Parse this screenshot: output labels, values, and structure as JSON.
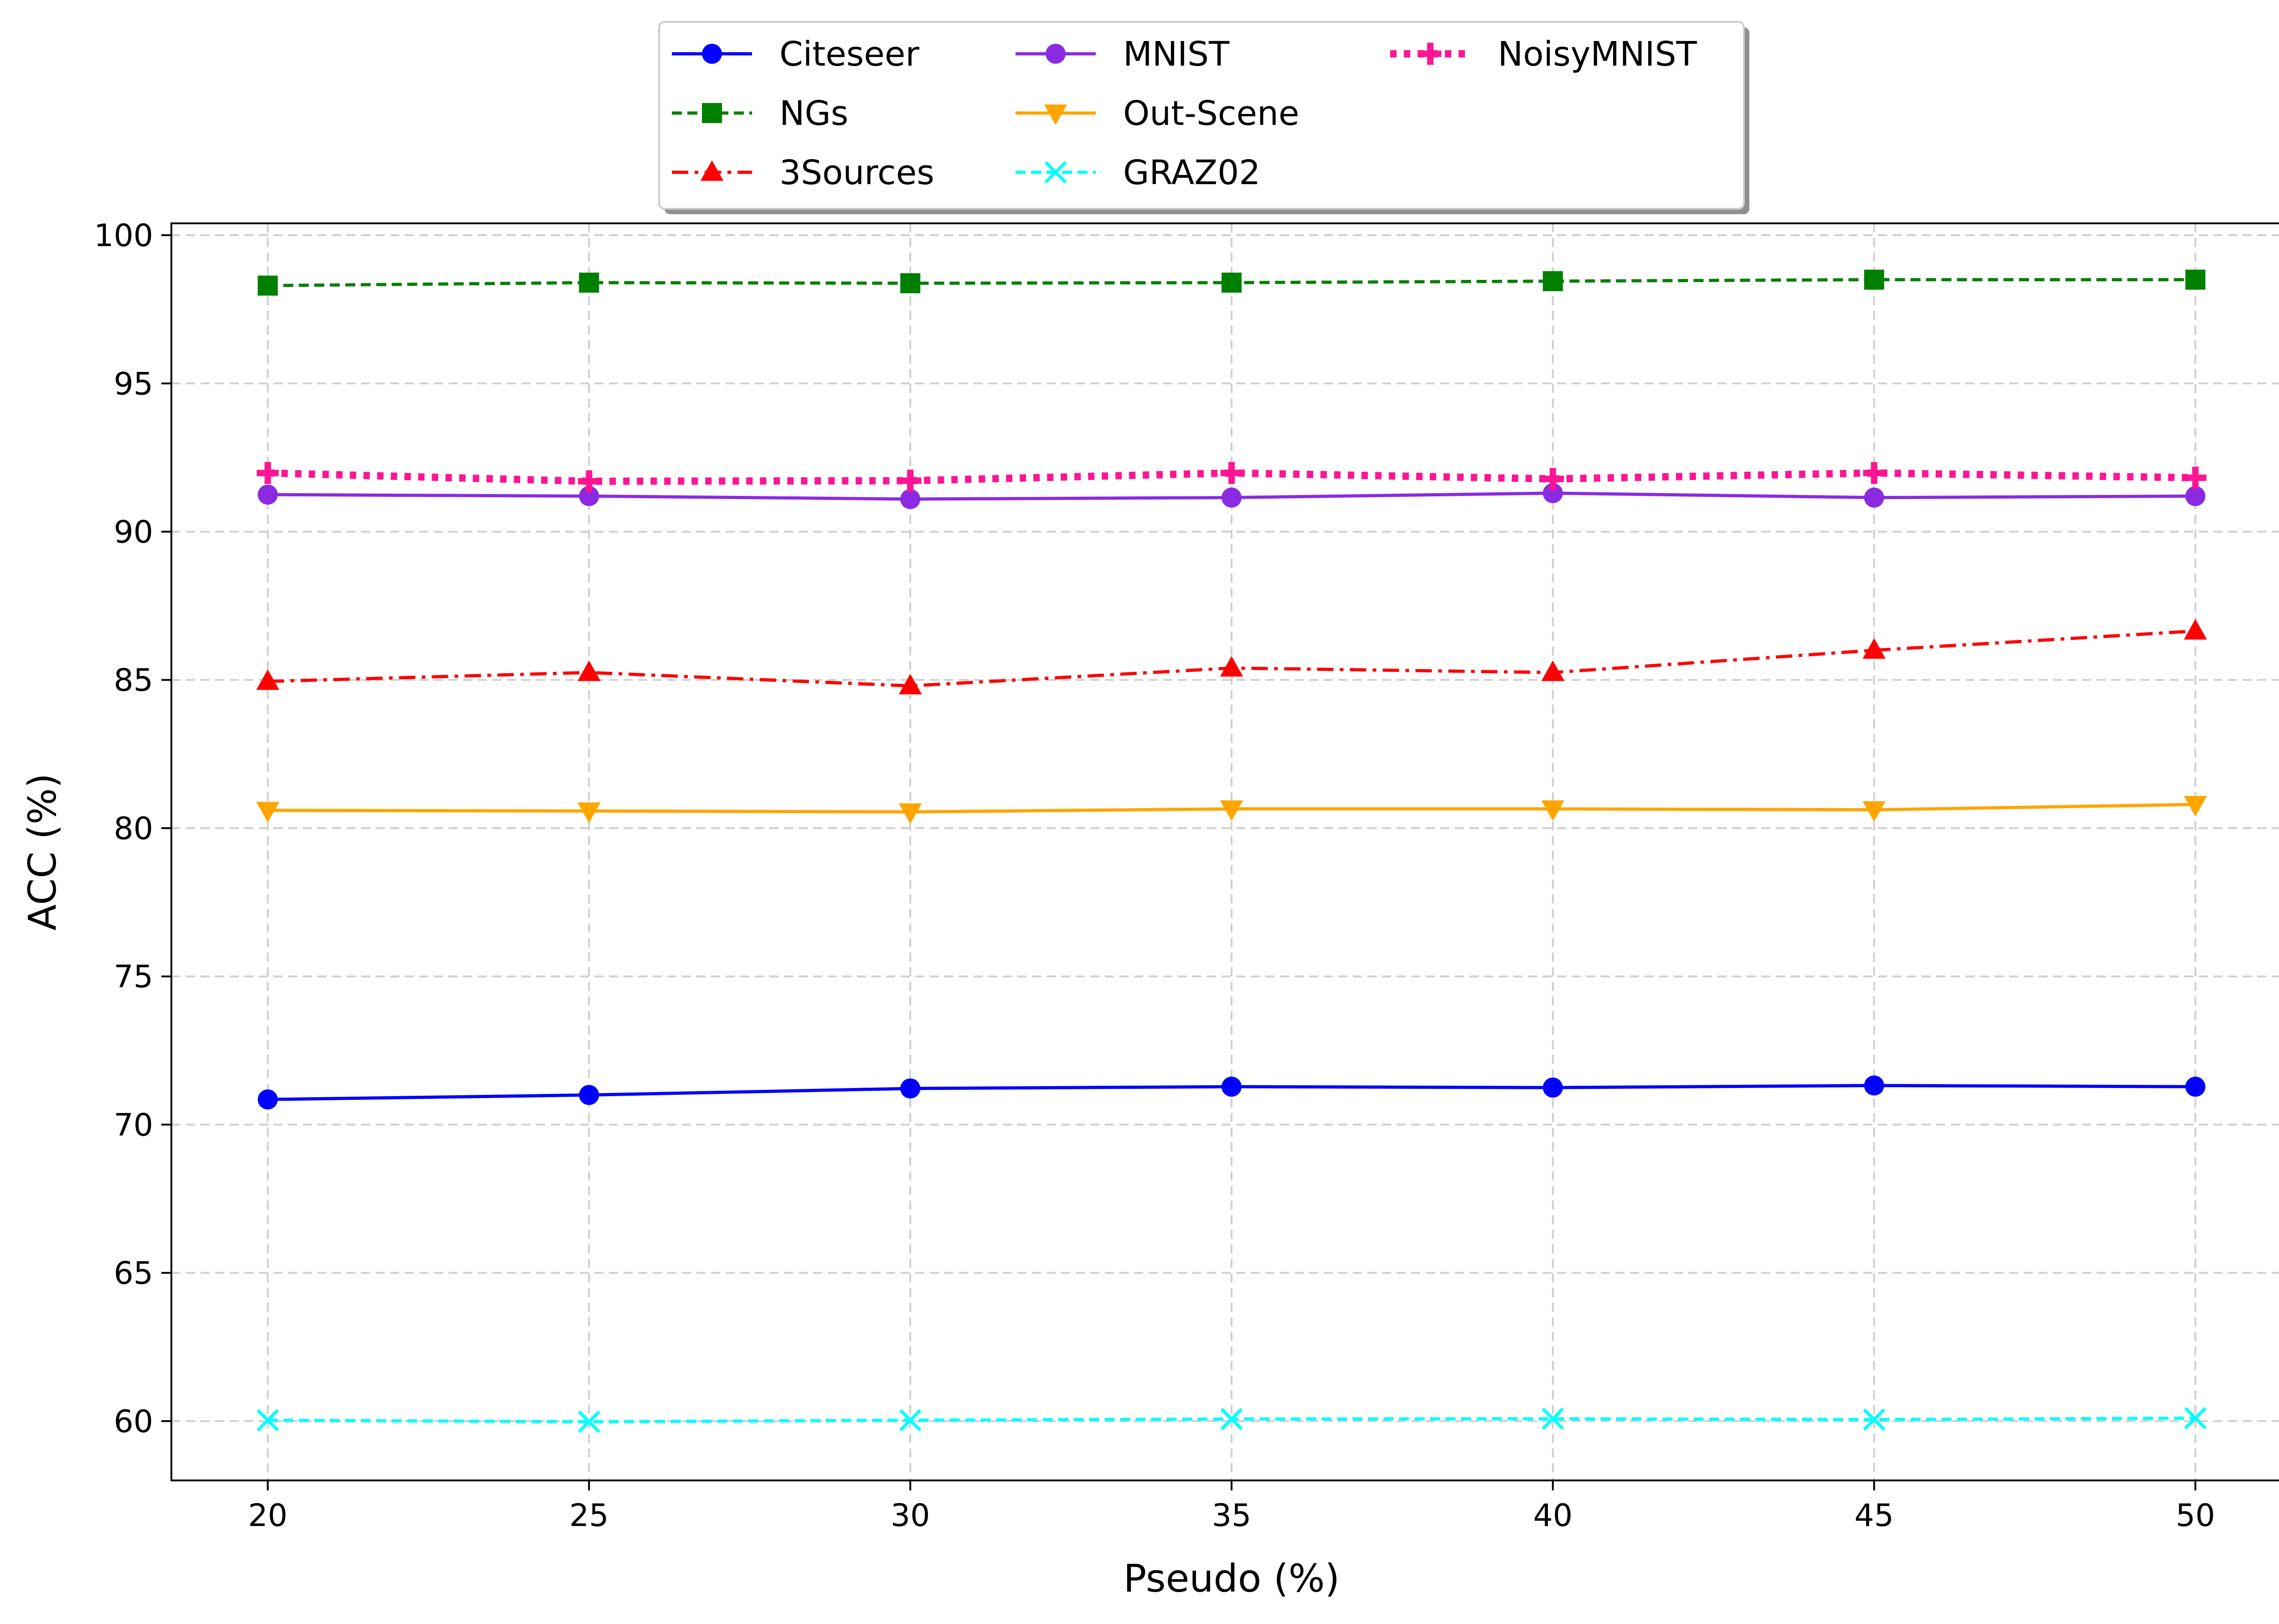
{
  "chart_data": {
    "type": "line",
    "title": "",
    "xlabel": "Pseudo (%)",
    "ylabel": "ACC (%)",
    "x": [
      20,
      25,
      30,
      35,
      40,
      45,
      50
    ],
    "x_ticks": [
      "20",
      "25",
      "30",
      "35",
      "40",
      "45",
      "50"
    ],
    "y_ticks": [
      "60",
      "65",
      "70",
      "75",
      "80",
      "85",
      "90",
      "95",
      "100"
    ],
    "xlim": [
      18.5,
      51.5
    ],
    "ylim": [
      58.0,
      100.4
    ],
    "grid": true,
    "legend_position": "top-center, outside plot",
    "series": [
      {
        "name": "Citeseer",
        "color": "#0000ff",
        "linestyle": "solid",
        "marker": "circle",
        "values": [
          70.85,
          71.0,
          71.22,
          71.28,
          71.25,
          71.32,
          71.28
        ]
      },
      {
        "name": "NGs",
        "color": "#008000",
        "linestyle": "dashed",
        "marker": "square",
        "values": [
          98.3,
          98.4,
          98.38,
          98.4,
          98.45,
          98.5,
          98.5
        ]
      },
      {
        "name": "3Sources",
        "color": "#ff0000",
        "linestyle": "dashdot",
        "marker": "triangle-up",
        "values": [
          84.95,
          85.25,
          84.8,
          85.4,
          85.25,
          86.0,
          86.65
        ]
      },
      {
        "name": "MNIST",
        "color": "#8a2be2",
        "linestyle": "solid",
        "marker": "circle",
        "values": [
          91.25,
          91.2,
          91.1,
          91.15,
          91.3,
          91.15,
          91.2
        ]
      },
      {
        "name": "Out-Scene",
        "color": "#ffa500",
        "linestyle": "solid",
        "marker": "triangle-down",
        "values": [
          80.6,
          80.58,
          80.55,
          80.65,
          80.65,
          80.62,
          80.8
        ]
      },
      {
        "name": "GRAZ02",
        "color": "#00ffff",
        "linestyle": "dashed",
        "marker": "x",
        "values": [
          60.03,
          59.98,
          60.03,
          60.07,
          60.08,
          60.05,
          60.1
        ]
      },
      {
        "name": "NoisyMNIST",
        "color": "#ff1493",
        "linestyle": "dotted",
        "marker": "plus",
        "values": [
          91.98,
          91.7,
          91.72,
          91.98,
          91.78,
          91.98,
          91.82
        ]
      }
    ]
  }
}
